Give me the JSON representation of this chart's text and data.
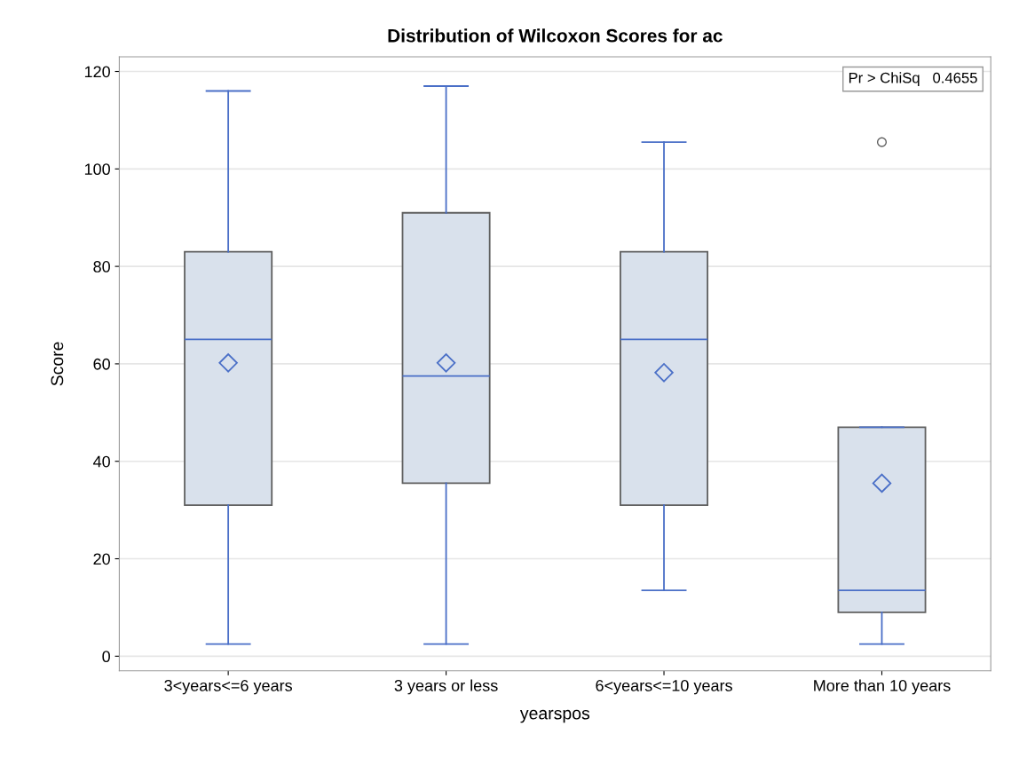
{
  "chart_data": {
    "type": "box",
    "title": "Distribution of Wilcoxon Scores for ac",
    "xlabel": "yearspos",
    "ylabel": "Score",
    "categories": [
      "3<years<=6 years",
      "3 years or less",
      "6<years<=10 years",
      "More than 10 years"
    ],
    "series": [
      {
        "color": "#d9e1ec",
        "boxes": [
          {
            "low": 2.5,
            "q1": 31,
            "median": 65,
            "q3": 83,
            "high": 116,
            "mean": 60.2
          },
          {
            "low": 2.5,
            "q1": 35.5,
            "median": 57.5,
            "q3": 91,
            "high": 117,
            "mean": 60.2
          },
          {
            "low": 13.5,
            "q1": 31,
            "median": 65,
            "q3": 83,
            "high": 105.5,
            "mean": 58.2
          },
          {
            "low": 2.5,
            "q1": 9,
            "median": 13.5,
            "q3": 47,
            "high": 47,
            "mean": 35.5,
            "outliers": [
              105.5
            ]
          }
        ]
      }
    ],
    "ylim": [
      -3,
      123
    ],
    "yticks": [
      0,
      20,
      40,
      60,
      80,
      100,
      120
    ],
    "grid": "y",
    "annotations": [
      "Pr > ChiSq   0.4655"
    ]
  }
}
